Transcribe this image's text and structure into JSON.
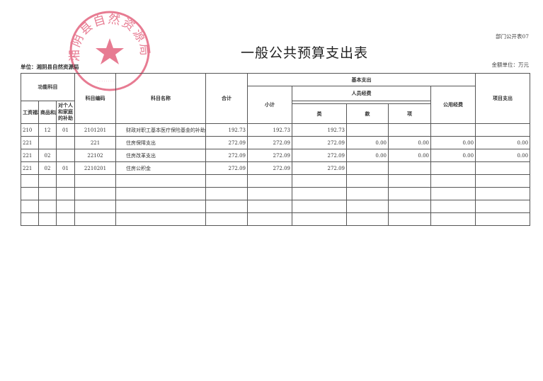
{
  "document": {
    "title": "一般公共预算支出表",
    "form_number": "部门公开表07",
    "unit": "单位：湘阴县自然资源局",
    "amount_unit": "金额单位：万元"
  },
  "stamp": {
    "text": "湘阴县自然资源局",
    "color": "#e0506e"
  },
  "table": {
    "headers": {
      "function_subject": "功能科目",
      "lei": "类",
      "kuan": "款",
      "xiang": "项",
      "subject_code": "科目编码",
      "subject_name": "科目名称",
      "total": "合计",
      "basic_expense": "基本支出",
      "subtotal": "小计",
      "personnel": "人员经费",
      "wages": "工资福利支出",
      "goods_services": "商品和服务支出",
      "individual_family": "对个人和家庭的补助",
      "public_funds": "公用经费",
      "project_expense": "项目支出"
    },
    "rows": [
      {
        "lei": "210",
        "kuan": "12",
        "xiang": "01",
        "code": "2101201",
        "name": "财政对职工基本医疗保险基金的补助",
        "total": "192.73",
        "subtotal": "192.73",
        "wages": "192.73",
        "goods": "",
        "individual": "",
        "public": "",
        "project": ""
      },
      {
        "lei": "221",
        "kuan": "",
        "xiang": "",
        "code": "221",
        "name": "住房保障支出",
        "total": "272.09",
        "subtotal": "272.09",
        "wages": "272.09",
        "goods": "0.00",
        "individual": "0.00",
        "public": "0.00",
        "project": "0.00"
      },
      {
        "lei": "221",
        "kuan": "02",
        "xiang": "",
        "code": "22102",
        "name": "住房改革支出",
        "total": "272.09",
        "subtotal": "272.09",
        "wages": "272.09",
        "goods": "0.00",
        "individual": "0.00",
        "public": "0.00",
        "project": "0.00"
      },
      {
        "lei": "221",
        "kuan": "02",
        "xiang": "01",
        "code": "2210201",
        "name": "住房公积金",
        "total": "272.09",
        "subtotal": "272.09",
        "wages": "272.09",
        "goods": "",
        "individual": "",
        "public": "",
        "project": ""
      }
    ],
    "empty_rows": 4
  }
}
